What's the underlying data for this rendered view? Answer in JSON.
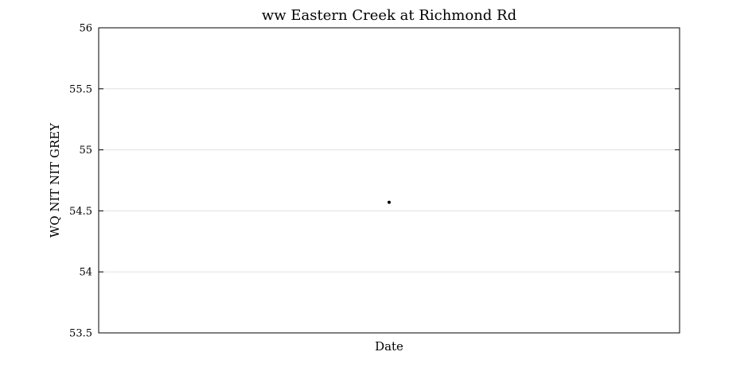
{
  "chart_data": {
    "type": "scatter",
    "title": "ww Eastern Creek at Richmond Rd",
    "xlabel": "Date",
    "ylabel": "WQ NIT NIT GREY",
    "ylim": [
      53.5,
      56
    ],
    "yticks": [
      53.5,
      54,
      54.5,
      55,
      55.5,
      56
    ],
    "ytick_labels": [
      "53.5",
      "54",
      "54.5",
      "55",
      "55.5",
      "56"
    ],
    "grid": true,
    "series": [
      {
        "points": [
          {
            "x": 0.5,
            "y": 54.57
          }
        ],
        "color": "#000000"
      }
    ]
  }
}
